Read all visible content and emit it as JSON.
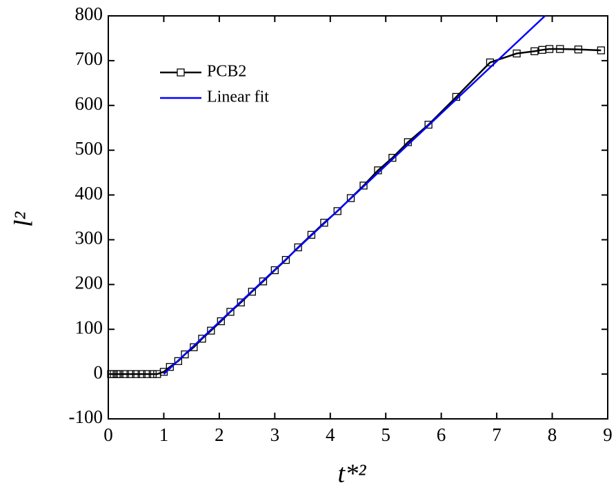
{
  "chart_data": {
    "type": "line",
    "xlabel": "t*²",
    "ylabel": "l²",
    "xlim": [
      0,
      9
    ],
    "ylim": [
      -100,
      800
    ],
    "xticks": [
      0,
      1,
      2,
      3,
      4,
      5,
      6,
      7,
      8,
      9
    ],
    "yticks": [
      -100,
      0,
      100,
      200,
      300,
      400,
      500,
      600,
      700,
      800
    ],
    "legend": "upper left",
    "series": [
      {
        "name": "PCB2",
        "color": "#000000",
        "marker": "square",
        "x": [
          0.05,
          0.1,
          0.15,
          0.2,
          0.3,
          0.4,
          0.5,
          0.6,
          0.7,
          0.8,
          0.88,
          1.0,
          1.11,
          1.26,
          1.38,
          1.54,
          1.69,
          1.85,
          2.03,
          2.2,
          2.39,
          2.59,
          2.79,
          3.0,
          3.2,
          3.42,
          3.66,
          3.89,
          4.13,
          4.37,
          4.6,
          4.86,
          5.12,
          5.4,
          5.77,
          6.27,
          6.88,
          7.36,
          7.68,
          7.82,
          7.95,
          8.14,
          8.47,
          8.88
        ],
        "values": [
          0,
          0,
          0,
          0,
          0,
          0,
          0,
          0,
          0,
          0,
          0,
          5,
          16,
          29,
          44,
          60,
          79,
          97,
          118,
          139,
          160,
          184,
          207,
          232,
          255,
          283,
          311,
          338,
          364,
          393,
          421,
          455,
          483,
          518,
          557,
          619,
          696,
          716,
          721,
          724,
          726,
          726,
          725,
          723
        ]
      },
      {
        "name": "Linear fit",
        "color": "#0000ff",
        "x": [
          1.0,
          7.87
        ],
        "values": [
          0,
          800
        ]
      }
    ]
  }
}
